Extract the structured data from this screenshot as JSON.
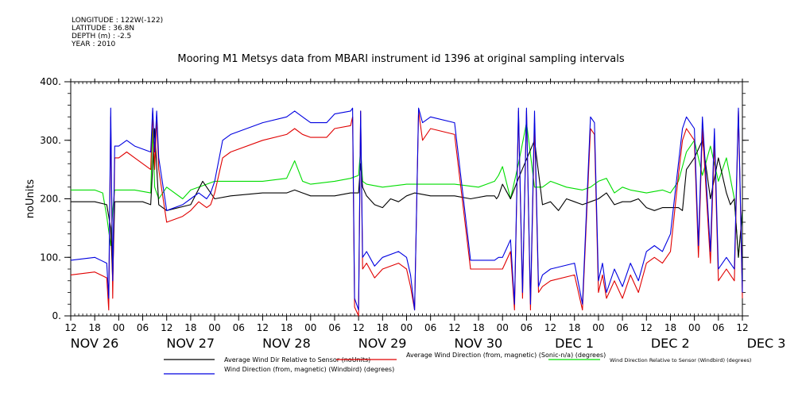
{
  "meta": {
    "longitude": "LONGITUDE : 122W(-122)",
    "latitude": "LATITUDE : 36.8N",
    "depth": "DEPTH (m) : -2.5",
    "year": "YEAR : 2010"
  },
  "chart_data": {
    "type": "line",
    "title": "Mooring M1 Metsys data from MBARI instrument id 1396 at original sampling intervals",
    "ylabel": "noUnits",
    "ylim": [
      0,
      400
    ],
    "yticks": [
      0,
      100,
      200,
      300,
      400
    ],
    "ytick_labels": [
      "0.",
      "100.",
      "200.",
      "300.",
      "400."
    ],
    "x_unit": "hours since 2010-11-26 12:00",
    "xlim": [
      0,
      168
    ],
    "xticks": [
      0,
      6,
      12,
      18,
      24,
      30,
      36,
      42,
      48,
      54,
      60,
      66,
      72,
      78,
      84,
      90,
      96,
      102,
      108,
      114,
      120,
      126,
      132,
      138,
      144,
      150,
      156,
      162,
      168
    ],
    "xtick_labels": [
      "12",
      "18",
      "00",
      "06",
      "12",
      "18",
      "00",
      "06",
      "12",
      "18",
      "00",
      "06",
      "12",
      "18",
      "00",
      "06",
      "12",
      "18",
      "00",
      "06",
      "12",
      "18",
      "00",
      "06",
      "12",
      "18",
      "00",
      "06",
      "12"
    ],
    "date_labels": [
      {
        "x": 0,
        "label": "NOV 26"
      },
      {
        "x": 24,
        "label": "NOV 27"
      },
      {
        "x": 48,
        "label": "NOV 28"
      },
      {
        "x": 72,
        "label": "NOV 29"
      },
      {
        "x": 96,
        "label": "NOV 30"
      },
      {
        "x": 120,
        "label": "DEC  1"
      },
      {
        "x": 144,
        "label": "DEC  2"
      },
      {
        "x": 168,
        "label": "DEC  3"
      }
    ],
    "series": [
      {
        "name": "Average Wind Dir Relative to Sensor (noUnits)",
        "color": "#000000",
        "x": [
          0,
          6,
          9,
          10,
          10.5,
          11,
          12,
          14,
          18,
          20,
          21,
          22,
          24,
          30,
          33,
          36,
          40,
          48,
          54,
          56,
          58,
          60,
          66,
          70,
          72,
          72.5,
          73,
          74,
          76,
          78,
          80,
          82,
          84,
          86,
          90,
          96,
          100,
          104,
          106,
          106.5,
          107,
          108,
          110,
          112,
          116,
          118,
          120,
          122,
          124,
          126,
          128,
          130,
          132,
          134,
          136,
          138,
          140,
          142,
          144,
          146,
          148,
          150,
          152,
          153,
          154,
          156,
          158,
          160,
          162,
          164,
          165,
          166,
          167,
          168
        ],
        "y": [
          195,
          195,
          190,
          150,
          60,
          195,
          195,
          195,
          195,
          190,
          320,
          190,
          180,
          190,
          230,
          200,
          205,
          210,
          210,
          215,
          210,
          205,
          205,
          210,
          210,
          260,
          220,
          205,
          190,
          185,
          200,
          195,
          205,
          210,
          205,
          205,
          200,
          205,
          205,
          200,
          205,
          225,
          200,
          235,
          300,
          190,
          195,
          180,
          200,
          195,
          190,
          195,
          200,
          210,
          190,
          195,
          195,
          200,
          185,
          180,
          185,
          185,
          185,
          180,
          250,
          270,
          300,
          200,
          270,
          210,
          190,
          200,
          100,
          180
        ]
      },
      {
        "name": "Average Wind Direction (from, magnetic) (Sonic-n/a) (degrees)",
        "color": "#e00000",
        "x": [
          0,
          6,
          9,
          9.5,
          10,
          10.5,
          11,
          12,
          14,
          16,
          20,
          20.5,
          21,
          21.5,
          22,
          24,
          28,
          30,
          32,
          34,
          35,
          36,
          38,
          40,
          48,
          54,
          56,
          58,
          60,
          64,
          66,
          70,
          70.5,
          71,
          72,
          72.5,
          73,
          74,
          76,
          78,
          82,
          84,
          85,
          86,
          87,
          88,
          90,
          96,
          100,
          106,
          107,
          108,
          110,
          111,
          112,
          113,
          114,
          115,
          116,
          117,
          118,
          120,
          126,
          128,
          130,
          131,
          132,
          133,
          134,
          136,
          138,
          140,
          142,
          144,
          146,
          148,
          150,
          152,
          153,
          154,
          156,
          157,
          158,
          160,
          161,
          162,
          164,
          166,
          167,
          168
        ],
        "y": [
          70,
          75,
          65,
          10,
          340,
          30,
          270,
          270,
          280,
          270,
          250,
          350,
          250,
          340,
          250,
          160,
          170,
          180,
          195,
          185,
          190,
          210,
          270,
          280,
          300,
          310,
          320,
          310,
          305,
          305,
          320,
          325,
          340,
          15,
          0,
          350,
          80,
          90,
          65,
          80,
          90,
          80,
          50,
          10,
          350,
          300,
          320,
          310,
          80,
          80,
          80,
          80,
          110,
          10,
          350,
          30,
          350,
          10,
          330,
          40,
          50,
          60,
          70,
          10,
          320,
          310,
          40,
          70,
          30,
          60,
          30,
          70,
          40,
          90,
          100,
          90,
          110,
          240,
          300,
          320,
          300,
          100,
          320,
          90,
          300,
          60,
          80,
          60,
          350,
          30
        ]
      },
      {
        "name": "Wind Direction Relative to Sensor (Windbird) (degrees)",
        "color": "#00dd00",
        "x": [
          0,
          6,
          8,
          9,
          10,
          10.5,
          11,
          12,
          16,
          20,
          20.5,
          21,
          22,
          24,
          28,
          30,
          34,
          36,
          40,
          48,
          54,
          56,
          58,
          60,
          66,
          70,
          72,
          72.5,
          73,
          74,
          78,
          84,
          90,
          96,
          102,
          104,
          106,
          107,
          108,
          110,
          112,
          114,
          116,
          118,
          120,
          124,
          128,
          130,
          132,
          134,
          136,
          138,
          140,
          144,
          148,
          150,
          152,
          154,
          156,
          158,
          160,
          162,
          164,
          166,
          167,
          168
        ],
        "y": [
          215,
          215,
          210,
          170,
          120,
          180,
          215,
          215,
          215,
          210,
          320,
          220,
          200,
          220,
          200,
          215,
          225,
          230,
          230,
          230,
          235,
          265,
          230,
          225,
          230,
          235,
          240,
          285,
          230,
          225,
          220,
          225,
          225,
          225,
          220,
          225,
          230,
          240,
          255,
          200,
          260,
          330,
          220,
          220,
          230,
          220,
          215,
          220,
          230,
          235,
          210,
          220,
          215,
          210,
          215,
          210,
          230,
          280,
          300,
          240,
          290,
          230,
          270,
          200,
          100,
          175
        ]
      },
      {
        "name": "Wind Direction (from, magnetic) (Windbird) (degrees)",
        "color": "#0000e0",
        "x": [
          0,
          6,
          9,
          9.5,
          10,
          10.5,
          11,
          12,
          14,
          16,
          20,
          20.5,
          21,
          21.5,
          22,
          24,
          28,
          30,
          32,
          34,
          35,
          36,
          38,
          40,
          48,
          54,
          56,
          58,
          60,
          64,
          66,
          70,
          70.5,
          71,
          72,
          72.5,
          73,
          74,
          76,
          78,
          82,
          84,
          85,
          86,
          87,
          88,
          90,
          96,
          100,
          106,
          107,
          108,
          110,
          111,
          112,
          113,
          114,
          115,
          116,
          117,
          118,
          120,
          126,
          128,
          130,
          131,
          132,
          133,
          134,
          136,
          138,
          140,
          142,
          144,
          146,
          148,
          150,
          152,
          153,
          154,
          156,
          157,
          158,
          160,
          161,
          162,
          164,
          166,
          167,
          168
        ],
        "y": [
          95,
          100,
          90,
          30,
          355,
          60,
          290,
          290,
          300,
          290,
          280,
          355,
          280,
          350,
          270,
          180,
          190,
          200,
          210,
          200,
          210,
          230,
          300,
          310,
          330,
          340,
          350,
          340,
          330,
          330,
          345,
          350,
          355,
          30,
          10,
          350,
          100,
          110,
          85,
          100,
          110,
          100,
          70,
          10,
          355,
          330,
          340,
          330,
          95,
          95,
          100,
          100,
          130,
          20,
          355,
          40,
          355,
          20,
          350,
          50,
          70,
          80,
          90,
          20,
          340,
          330,
          60,
          90,
          40,
          80,
          50,
          90,
          60,
          110,
          120,
          110,
          140,
          260,
          320,
          340,
          320,
          120,
          340,
          110,
          320,
          80,
          100,
          80,
          355,
          40
        ]
      }
    ]
  }
}
